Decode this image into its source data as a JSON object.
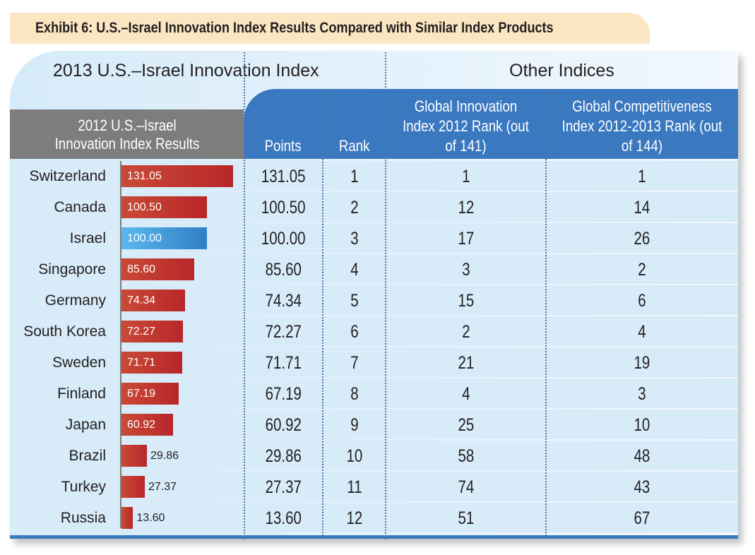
{
  "title": "Exhibit 6: U.S.–Israel Innovation Index Results Compared with Similar Index Products",
  "section_left": "2013 U.S.–Israel Innovation Index",
  "section_right": "Other Indices",
  "headers": {
    "results": "2012 U.S.–Israel Innovation Index Results",
    "points": "Points",
    "rank": "Rank",
    "gii": "Global Innovation Index 2012 Rank (out of 141)",
    "gci": "Global Competitiveness Index 2012-2013 Rank (out of 144)"
  },
  "colors": {
    "bar": "#c0392b",
    "highlight": "#3a9ad9",
    "header": "#3a78c0",
    "gray_header": "#7d7d7d",
    "banner": "#fbe6c2"
  },
  "chart_data": {
    "type": "bar",
    "orientation": "horizontal",
    "categories": [
      "Switzerland",
      "Canada",
      "Israel",
      "Singapore",
      "Germany",
      "South Korea",
      "Sweden",
      "Finland",
      "Japan",
      "Brazil",
      "Turkey",
      "Russia"
    ],
    "values": [
      131.05,
      100.5,
      100.0,
      85.6,
      74.34,
      72.27,
      71.71,
      67.19,
      60.92,
      29.86,
      27.37,
      13.6
    ],
    "labels": [
      "131.05",
      "100.50",
      "100.00",
      "85.60",
      "74.34",
      "72.27",
      "71.71",
      "67.19",
      "60.92",
      "29.86",
      "27.37",
      "13.60"
    ],
    "highlight": "Israel",
    "xlim": [
      0,
      131.05
    ]
  },
  "table": {
    "rank": [
      "1",
      "2",
      "3",
      "4",
      "5",
      "6",
      "7",
      "8",
      "9",
      "10",
      "11",
      "12"
    ],
    "gii": [
      "1",
      "12",
      "17",
      "3",
      "15",
      "2",
      "21",
      "4",
      "25",
      "58",
      "74",
      "51"
    ],
    "gci": [
      "1",
      "14",
      "26",
      "2",
      "6",
      "4",
      "19",
      "3",
      "10",
      "48",
      "43",
      "67"
    ]
  }
}
